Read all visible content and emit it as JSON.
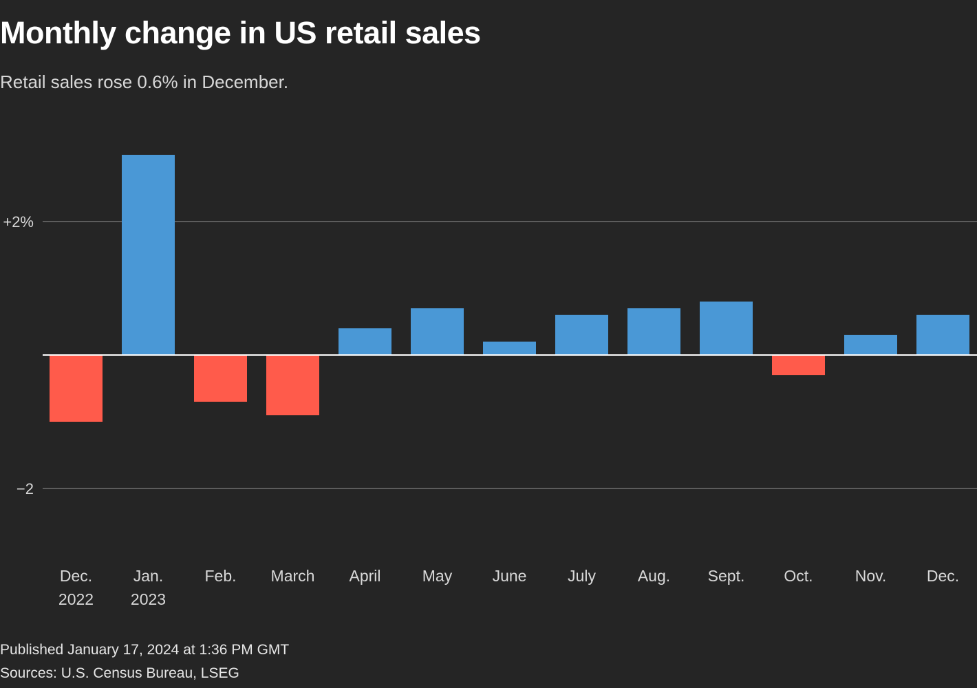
{
  "header": {
    "title": "Monthly change in US retail sales",
    "subtitle": "Retail sales rose 0.6% in December."
  },
  "chart_data": {
    "type": "bar",
    "categories": [
      "Dec. 2022",
      "Jan. 2023",
      "Feb.",
      "March",
      "April",
      "May",
      "June",
      "July",
      "Aug.",
      "Sept.",
      "Oct.",
      "Nov.",
      "Dec."
    ],
    "category_lines": [
      [
        "Dec.",
        "2022"
      ],
      [
        "Jan.",
        "2023"
      ],
      [
        "Feb."
      ],
      [
        "March"
      ],
      [
        "April"
      ],
      [
        "May"
      ],
      [
        "June"
      ],
      [
        "July"
      ],
      [
        "Aug."
      ],
      [
        "Sept."
      ],
      [
        "Oct."
      ],
      [
        "Nov."
      ],
      [
        "Dec."
      ]
    ],
    "values": [
      -1.0,
      3.0,
      -0.7,
      -0.9,
      0.4,
      0.7,
      0.2,
      0.6,
      0.7,
      0.8,
      -0.3,
      0.3,
      0.6
    ],
    "ylim": [
      -2.7,
      3.3
    ],
    "yticks": [
      {
        "value": 2,
        "label": "+2%"
      },
      {
        "value": -2,
        "label": "−2"
      }
    ],
    "grid": true,
    "colors": {
      "positive": "#4a98d6",
      "negative": "#ff5b4b",
      "grid": "#6e6e6e",
      "baseline": "#ffffff",
      "tick_label": "#d8d8d8"
    }
  },
  "footer": {
    "published": "Published January 17, 2024 at 1:36 PM GMT",
    "sources": "Sources: U.S. Census Bureau, LSEG"
  }
}
